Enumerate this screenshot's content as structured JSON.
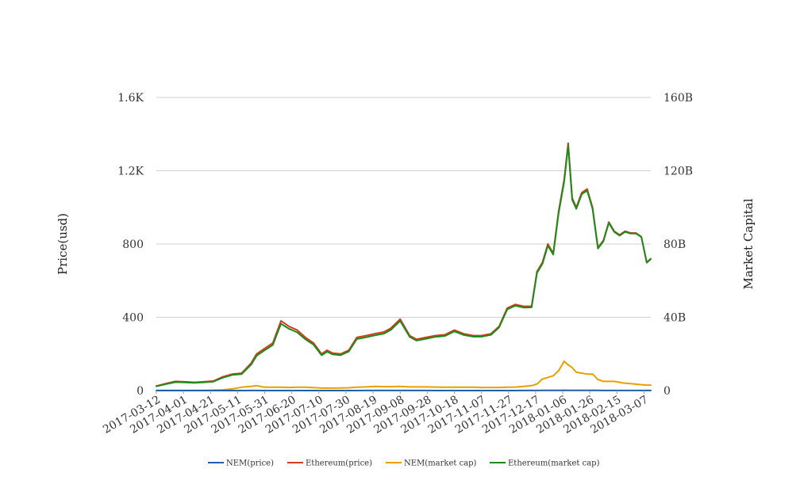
{
  "chart_data": {
    "type": "line",
    "ylabel": "Price(usd)",
    "y2label": "Market Capital",
    "ylim": [
      0,
      1600
    ],
    "y2lim": [
      0,
      160000000000
    ],
    "yticks": [
      {
        "value": 0,
        "label": "0"
      },
      {
        "value": 400,
        "label": "400"
      },
      {
        "value": 800,
        "label": "800"
      },
      {
        "value": 1200,
        "label": "1.2K"
      },
      {
        "value": 1600,
        "label": "1.6K"
      }
    ],
    "y2ticks": [
      {
        "value": 0,
        "label": "0"
      },
      {
        "value": 40000000000,
        "label": "40B"
      },
      {
        "value": 80000000000,
        "label": "80B"
      },
      {
        "value": 120000000000,
        "label": "120B"
      },
      {
        "value": 160000000000,
        "label": "160B"
      }
    ],
    "xlim": [
      "2017-03-12",
      "2018-03-12"
    ],
    "xticks": [
      "2017-03-12",
      "2017-04-01",
      "2017-04-21",
      "2017-05-11",
      "2017-05-31",
      "2017-06-20",
      "2017-07-10",
      "2017-07-30",
      "2017-08-19",
      "2017-09-08",
      "2017-09-28",
      "2017-10-18",
      "2017-11-07",
      "2017-11-27",
      "2017-12-17",
      "2018-01-06",
      "2018-01-26",
      "2018-02-15",
      "2018-03-07"
    ],
    "grid": true,
    "legend_position": "bottom",
    "x": [
      "2017-03-12",
      "2017-03-19",
      "2017-03-26",
      "2017-04-02",
      "2017-04-09",
      "2017-04-16",
      "2017-04-23",
      "2017-04-30",
      "2017-05-07",
      "2017-05-14",
      "2017-05-21",
      "2017-05-25",
      "2017-05-31",
      "2017-06-06",
      "2017-06-12",
      "2017-06-18",
      "2017-06-24",
      "2017-06-30",
      "2017-07-06",
      "2017-07-12",
      "2017-07-16",
      "2017-07-20",
      "2017-07-26",
      "2017-08-01",
      "2017-08-07",
      "2017-08-14",
      "2017-08-20",
      "2017-08-27",
      "2017-09-01",
      "2017-09-08",
      "2017-09-15",
      "2017-09-20",
      "2017-09-27",
      "2017-10-04",
      "2017-10-11",
      "2017-10-18",
      "2017-10-25",
      "2017-11-01",
      "2017-11-07",
      "2017-11-14",
      "2017-11-20",
      "2017-11-26",
      "2017-12-02",
      "2017-12-08",
      "2017-12-14",
      "2017-12-18",
      "2017-12-22",
      "2017-12-26",
      "2017-12-30",
      "2018-01-03",
      "2018-01-07",
      "2018-01-10",
      "2018-01-13",
      "2018-01-16",
      "2018-01-20",
      "2018-01-24",
      "2018-01-28",
      "2018-02-01",
      "2018-02-05",
      "2018-02-09",
      "2018-02-13",
      "2018-02-17",
      "2018-02-21",
      "2018-02-25",
      "2018-03-01",
      "2018-03-05",
      "2018-03-09",
      "2018-03-12"
    ],
    "series": [
      {
        "name": "NEM(price)",
        "axis": "left",
        "color": "#1f5fa8",
        "values": [
          0.01,
          0.01,
          0.01,
          0.01,
          0.01,
          0.01,
          0.02,
          0.04,
          0.1,
          0.2,
          0.25,
          0.3,
          0.2,
          0.2,
          0.2,
          0.19,
          0.2,
          0.2,
          0.18,
          0.15,
          0.15,
          0.15,
          0.16,
          0.17,
          0.2,
          0.22,
          0.25,
          0.24,
          0.24,
          0.25,
          0.22,
          0.22,
          0.22,
          0.21,
          0.2,
          0.2,
          0.2,
          0.2,
          0.19,
          0.19,
          0.19,
          0.2,
          0.21,
          0.25,
          0.3,
          0.4,
          0.7,
          0.8,
          0.9,
          1.2,
          1.6,
          1.4,
          1.3,
          1.1,
          1.0,
          1.0,
          1.0,
          0.7,
          0.5,
          0.5,
          0.5,
          0.5,
          0.45,
          0.45,
          0.4,
          0.35,
          0.3,
          0.3
        ]
      },
      {
        "name": "Ethereum(price)",
        "axis": "left",
        "color": "#d43d1a",
        "values": [
          25,
          38,
          50,
          48,
          45,
          48,
          52,
          75,
          90,
          95,
          150,
          200,
          230,
          260,
          380,
          350,
          330,
          290,
          260,
          200,
          220,
          205,
          200,
          220,
          290,
          300,
          310,
          320,
          340,
          390,
          300,
          280,
          290,
          300,
          305,
          330,
          310,
          300,
          300,
          310,
          350,
          450,
          470,
          460,
          460,
          650,
          700,
          800,
          750,
          980,
          1150,
          1350,
          1050,
          1000,
          1080,
          1100,
          1000,
          780,
          820,
          920,
          870,
          850,
          870,
          860,
          860,
          840,
          700,
          720
        ]
      },
      {
        "name": "NEM(market cap)",
        "axis": "right",
        "color": "#e8a000",
        "values": [
          0.1,
          0.1,
          0.1,
          0.1,
          0.1,
          0.1,
          0.2,
          0.4,
          0.9,
          1.8,
          2.3,
          2.7,
          1.8,
          1.8,
          1.8,
          1.7,
          1.8,
          1.8,
          1.6,
          1.35,
          1.35,
          1.35,
          1.44,
          1.53,
          1.8,
          2.0,
          2.25,
          2.16,
          2.16,
          2.25,
          2.0,
          2.0,
          2.0,
          1.9,
          1.8,
          1.8,
          1.8,
          1.8,
          1.7,
          1.7,
          1.7,
          1.8,
          1.9,
          2.25,
          2.7,
          3.6,
          6.3,
          7.2,
          8.1,
          10.8,
          16.0,
          14.0,
          12.5,
          10.0,
          9.5,
          9.0,
          9.0,
          6.0,
          5.0,
          5.0,
          5.0,
          4.5,
          4.0,
          3.8,
          3.5,
          3.2,
          3.0,
          3.0
        ]
      },
      {
        "name": "Ethereum(market cap)",
        "axis": "right",
        "color": "#1d8a1d",
        "values": [
          2.3,
          3.5,
          4.6,
          4.4,
          4.2,
          4.5,
          4.9,
          7.0,
          8.5,
          9.0,
          14.2,
          19.0,
          22.0,
          24.9,
          36.5,
          33.7,
          31.8,
          28.0,
          25.1,
          19.3,
          21.2,
          19.8,
          19.3,
          21.3,
          28.1,
          29.1,
          30.1,
          31.1,
          33.1,
          38.0,
          29.3,
          27.3,
          28.3,
          29.3,
          29.8,
          32.3,
          30.3,
          29.4,
          29.4,
          30.4,
          34.4,
          44.3,
          46.3,
          45.3,
          45.4,
          64.2,
          69.2,
          79.1,
          74.2,
          97.0,
          113.9,
          133.8,
          104.1,
          99.2,
          107.2,
          109.2,
          99.3,
          77.5,
          81.5,
          91.5,
          86.6,
          84.6,
          86.6,
          85.7,
          85.7,
          83.8,
          69.8,
          71.8
        ]
      }
    ]
  }
}
